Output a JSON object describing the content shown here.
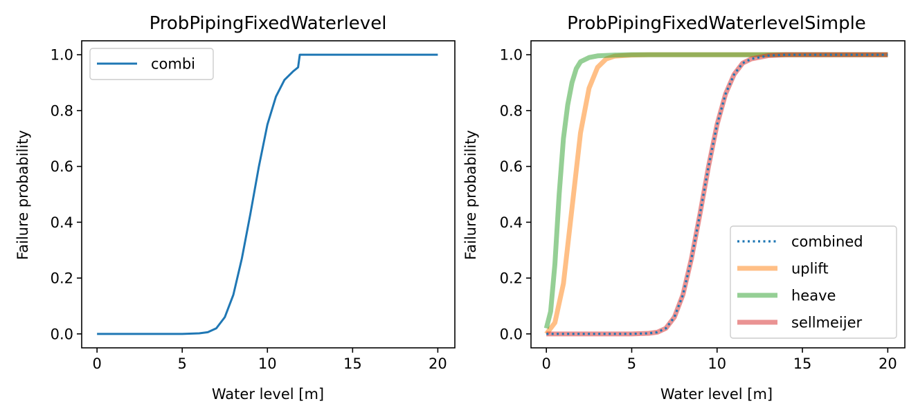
{
  "chart_data": [
    {
      "type": "line",
      "title": "ProbPipingFixedWaterlevel",
      "xlabel": "Water level [m]",
      "ylabel": "Failure probability",
      "xlim": [
        -0.9,
        21.0
      ],
      "ylim": [
        -0.05,
        1.05
      ],
      "xticks": [
        0,
        5,
        10,
        15,
        20
      ],
      "xtick_labels": [
        "0",
        "5",
        "10",
        "15",
        "20"
      ],
      "yticks": [
        0.0,
        0.2,
        0.4,
        0.6,
        0.8,
        1.0
      ],
      "ytick_labels": [
        "0.0",
        "0.2",
        "0.4",
        "0.6",
        "0.8",
        "1.0"
      ],
      "grid": false,
      "legend_position": "upper-left",
      "series": [
        {
          "name": "combi",
          "color": "#1f77b4",
          "style": "solid",
          "x": [
            0,
            1,
            2,
            3,
            4,
            5,
            6,
            6.5,
            7,
            7.5,
            8,
            8.5,
            9,
            9.5,
            10,
            10.5,
            11,
            11.5,
            11.8,
            11.9,
            12,
            13,
            14,
            15,
            16,
            17,
            18,
            19,
            20
          ],
          "y": [
            0,
            0,
            0,
            0,
            0,
            0,
            0.002,
            0.006,
            0.02,
            0.06,
            0.14,
            0.27,
            0.43,
            0.6,
            0.75,
            0.85,
            0.91,
            0.94,
            0.955,
            1.0,
            1.0,
            1.0,
            1.0,
            1.0,
            1.0,
            1.0,
            1.0,
            1.0,
            1.0
          ]
        }
      ]
    },
    {
      "type": "line",
      "title": "ProbPipingFixedWaterlevelSimple",
      "xlabel": "Water level [m]",
      "ylabel": "Failure probability",
      "xlim": [
        -0.9,
        21.0
      ],
      "ylim": [
        -0.05,
        1.05
      ],
      "xticks": [
        0,
        5,
        10,
        15,
        20
      ],
      "xtick_labels": [
        "0",
        "5",
        "10",
        "15",
        "20"
      ],
      "yticks": [
        0.0,
        0.2,
        0.4,
        0.6,
        0.8,
        1.0
      ],
      "ytick_labels": [
        "0.0",
        "0.2",
        "0.4",
        "0.6",
        "0.8",
        "1.0"
      ],
      "grid": false,
      "legend_position": "lower-right",
      "series": [
        {
          "name": "combined",
          "color": "#1f77b4",
          "style": "dotted",
          "x": [
            0,
            1,
            2,
            3,
            4,
            5,
            6,
            6.5,
            7,
            7.5,
            8,
            8.5,
            9,
            9.5,
            10,
            10.5,
            11,
            11.5,
            12,
            13,
            14,
            15,
            16,
            17,
            18,
            19,
            20
          ],
          "y": [
            0,
            0,
            0,
            0,
            0,
            0,
            0.002,
            0.006,
            0.02,
            0.06,
            0.14,
            0.27,
            0.43,
            0.6,
            0.75,
            0.86,
            0.93,
            0.97,
            0.985,
            0.997,
            1.0,
            1.0,
            1.0,
            1.0,
            1.0,
            1.0,
            1.0
          ]
        },
        {
          "name": "uplift",
          "color": "#ff7f0e",
          "style": "thick",
          "x": [
            0,
            0.5,
            1,
            1.5,
            2,
            2.5,
            3,
            3.5,
            4,
            5,
            6,
            7,
            8,
            10,
            12,
            14,
            16,
            18,
            20
          ],
          "y": [
            0.0,
            0.04,
            0.18,
            0.45,
            0.72,
            0.88,
            0.955,
            0.985,
            0.995,
            0.999,
            1.0,
            1.0,
            1.0,
            1.0,
            1.0,
            1.0,
            1.0,
            1.0,
            1.0
          ]
        },
        {
          "name": "heave",
          "color": "#2ca02c",
          "style": "thick",
          "x": [
            0,
            0.25,
            0.5,
            0.75,
            1,
            1.25,
            1.5,
            1.75,
            2,
            2.5,
            3,
            4,
            5,
            6,
            8,
            10,
            12,
            14,
            16,
            18,
            20
          ],
          "y": [
            0.02,
            0.08,
            0.25,
            0.5,
            0.7,
            0.82,
            0.9,
            0.95,
            0.975,
            0.99,
            0.996,
            0.999,
            1.0,
            1.0,
            1.0,
            1.0,
            1.0,
            1.0,
            1.0,
            1.0,
            1.0
          ]
        },
        {
          "name": "sellmeijer",
          "color": "#d62728",
          "style": "thick",
          "x": [
            0,
            1,
            2,
            3,
            4,
            5,
            6,
            6.5,
            7,
            7.5,
            8,
            8.5,
            9,
            9.5,
            10,
            10.5,
            11,
            11.5,
            12,
            13,
            14,
            15,
            16,
            17,
            18,
            19,
            20
          ],
          "y": [
            0,
            0,
            0,
            0,
            0,
            0,
            0.002,
            0.006,
            0.02,
            0.06,
            0.14,
            0.27,
            0.43,
            0.6,
            0.75,
            0.86,
            0.93,
            0.97,
            0.985,
            0.997,
            1.0,
            1.0,
            1.0,
            1.0,
            1.0,
            1.0,
            1.0
          ]
        }
      ]
    }
  ]
}
